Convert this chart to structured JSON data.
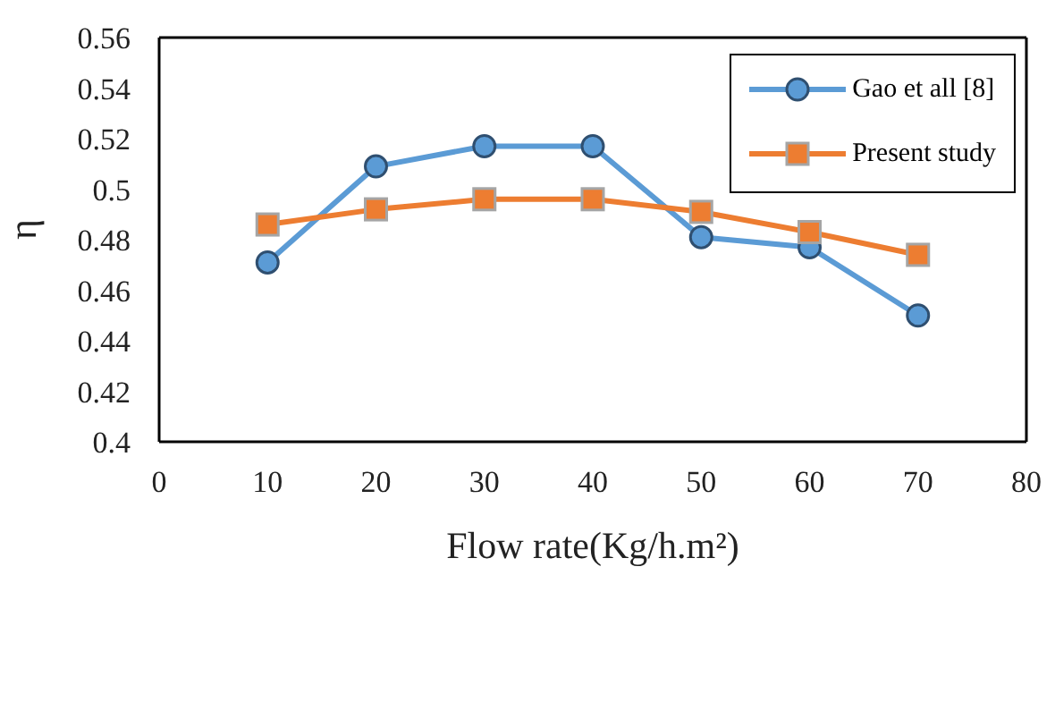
{
  "chart_data": {
    "type": "line",
    "xlabel": "Flow rate(Kg/h.m²)",
    "ylabel": "η",
    "x": [
      10,
      20,
      30,
      40,
      50,
      60,
      70
    ],
    "series": [
      {
        "name": "Gao et all [8]",
        "color": "#5b9bd5",
        "marker": "circle",
        "values": [
          0.471,
          0.509,
          0.517,
          0.517,
          0.481,
          0.477,
          0.45
        ]
      },
      {
        "name": "Present study",
        "color": "#ed7d31",
        "marker": "square",
        "values": [
          0.486,
          0.492,
          0.496,
          0.496,
          0.491,
          0.483,
          0.474
        ]
      }
    ],
    "xlim": [
      0,
      80
    ],
    "xticks": [
      0,
      10,
      20,
      30,
      40,
      50,
      60,
      70,
      80
    ],
    "ylim": [
      0.4,
      0.56
    ],
    "yticks": [
      0.4,
      0.42,
      0.44,
      0.46,
      0.48,
      {
        "value": 0.5,
        "label": "0.5"
      },
      0.52,
      0.54,
      0.56
    ],
    "grid": false,
    "legend": "top right",
    "line_style": "solid"
  }
}
